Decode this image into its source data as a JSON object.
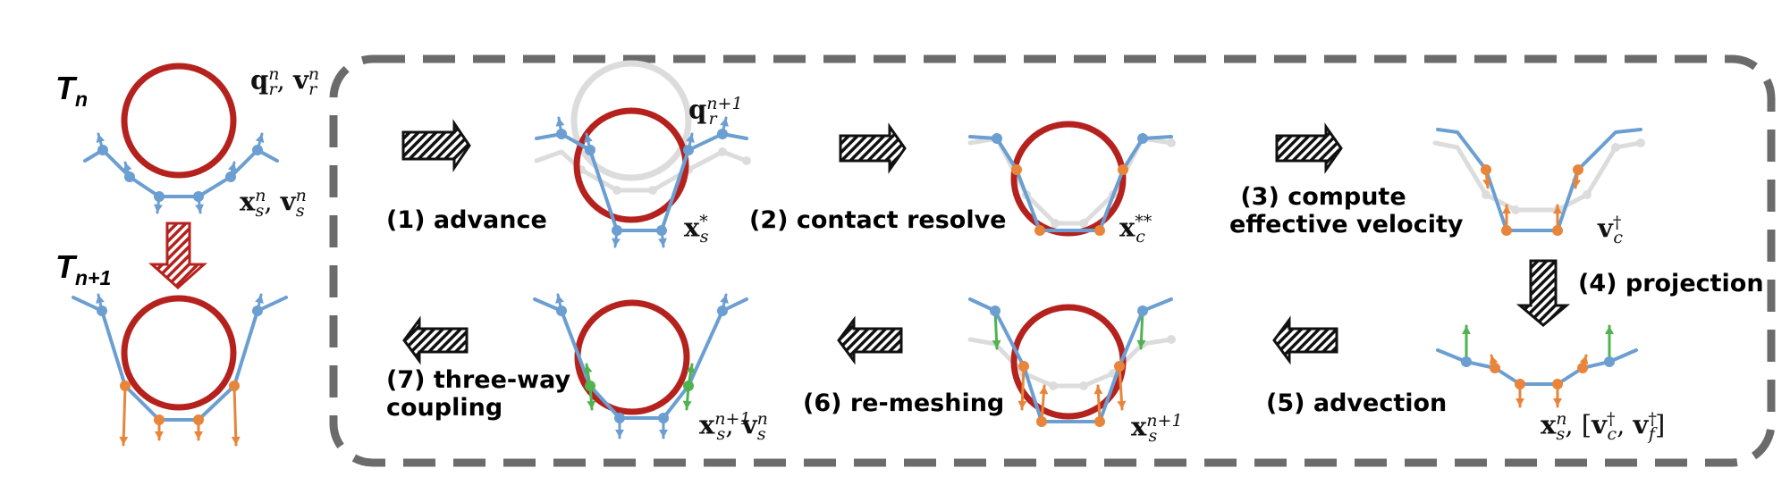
{
  "stages": {
    "before": "T",
    "before_sub": "n",
    "after": "T",
    "after_sub": "n+1"
  },
  "steps": [
    {
      "label": "(1) advance"
    },
    {
      "label": "(2) contact resolve"
    },
    {
      "label_line1": "(3) compute",
      "label_line2": "effective velocity"
    },
    {
      "label": "(4) projection"
    },
    {
      "label": "(5) advection"
    },
    {
      "label": "(6) re-meshing"
    },
    {
      "label_line1": "(7) three-way",
      "label_line2": "coupling"
    }
  ],
  "symbols": {
    "x": "x",
    "v": "v",
    "q": "q",
    "s": "s",
    "r": "r",
    "c": "c",
    "f": "f",
    "n": "n",
    "n1": "n+1",
    "star": "*",
    "dstar": "**",
    "dagger": "†",
    "comma": ",",
    "lbr": "[",
    "rbr": "]"
  },
  "colors": {
    "rigid": "#b5221e",
    "sheet": "#6b9ed1",
    "contact": "#e8853a",
    "coupling": "#4fb34f",
    "ghost": "#dcdcdc",
    "frame": "#6b6b6b",
    "arrow": "#111111",
    "arrow_red": "#b5221e"
  }
}
